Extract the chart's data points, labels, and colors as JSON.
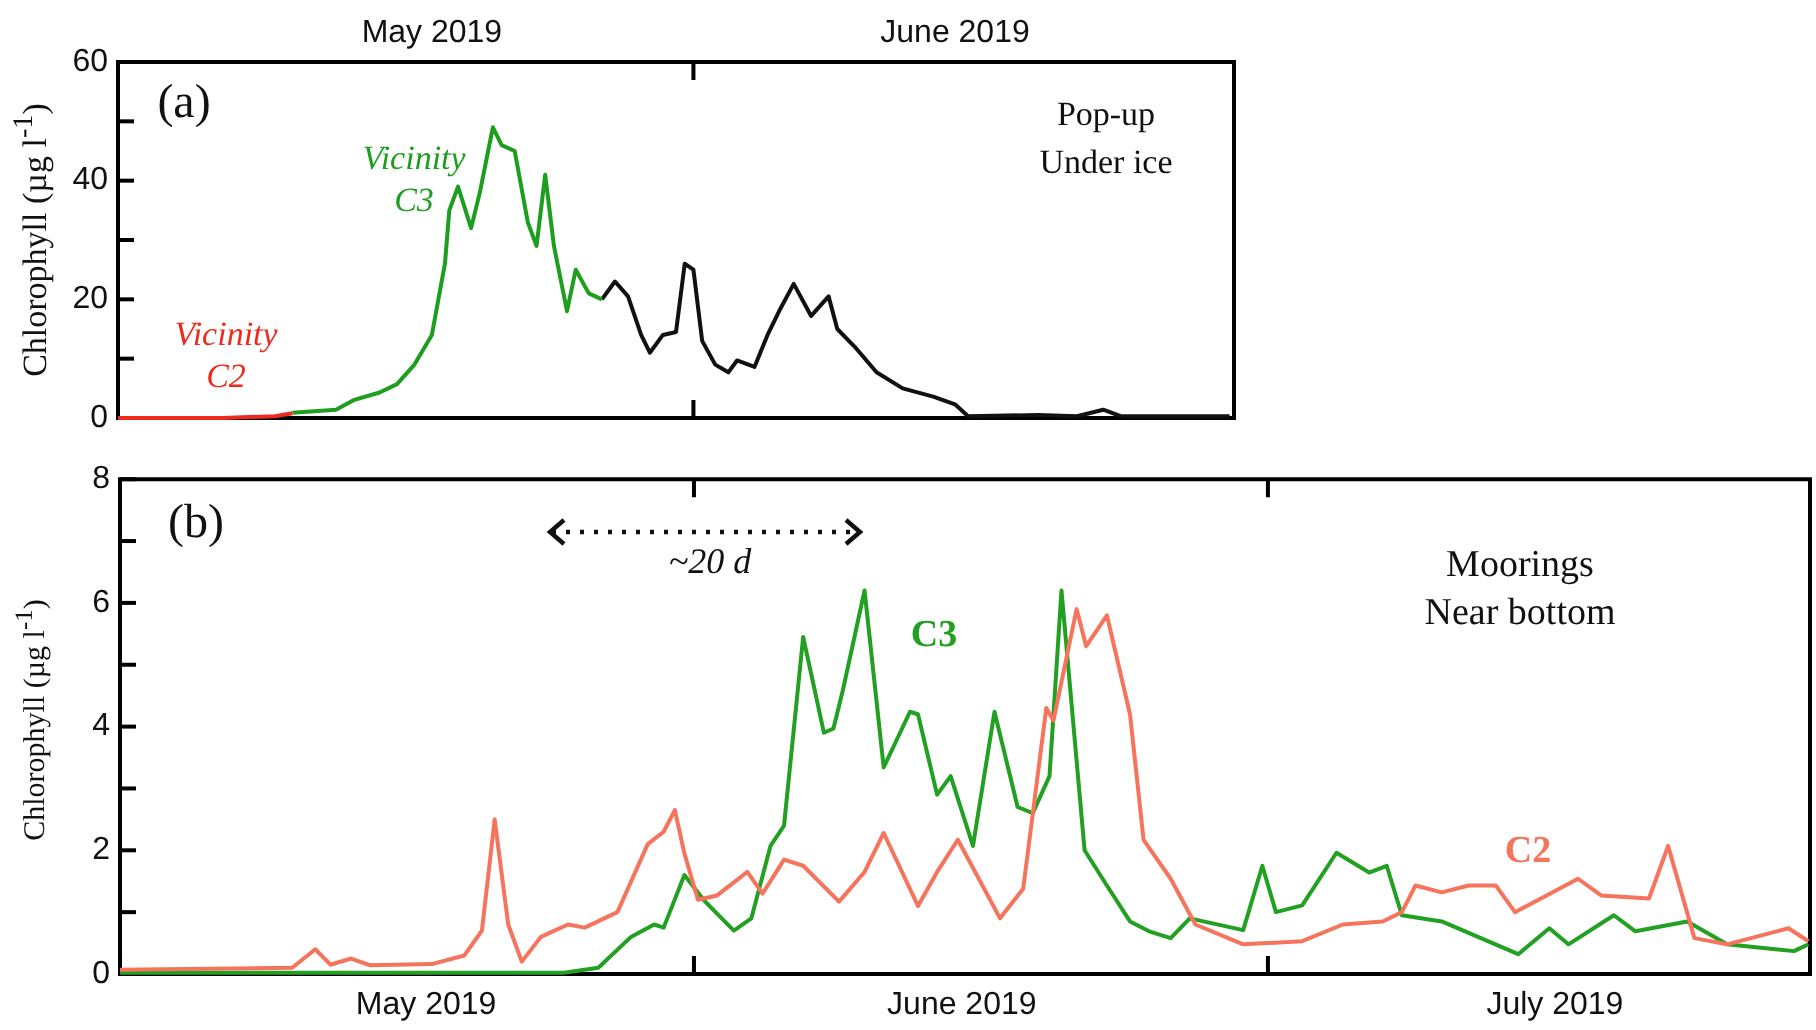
{
  "chart_data": [
    {
      "type": "line",
      "ylabel": "Chlorophyll (µg l$^{-1}$)",
      "annotations": [
        "(a)",
        "Pop-up Under ice"
      ],
      "xlim": [
        "2019-04-29",
        "2019-07-02"
      ],
      "ylim": [
        0,
        60
      ],
      "xticks": [
        {
          "value": "2019-05-17",
          "label": "May 2019"
        },
        {
          "value": "2019-06-01",
          "label": null
        },
        {
          "value": "2019-06-16",
          "label": "June 2019"
        }
      ],
      "yticks": [
        0,
        {
          "value": 10,
          "label": null
        },
        20,
        {
          "value": 30,
          "label": null
        },
        40,
        {
          "value": 50,
          "label": null
        },
        60
      ],
      "series": [
        {
          "name": "Vicinity C2",
          "color": "#ee2a1e",
          "x": [
            "2019-04-29",
            "2019-05-05",
            "2019-05-08",
            "2019-05-09"
          ],
          "values": [
            0,
            0,
            0.3,
            0.8
          ]
        },
        {
          "name": "Vicinity C3",
          "color": "#1e9e1e",
          "x": [
            "2019-05-09",
            "2019-05-11T12:00",
            "2019-05-12T12:00",
            "2019-05-14",
            "2019-05-15",
            "2019-05-16",
            "2019-05-17",
            "2019-05-17T18:00",
            "2019-05-18",
            "2019-05-18T12:00",
            "2019-05-19T06:00",
            "2019-05-19T18:00",
            "2019-05-20T12:00",
            "2019-05-21",
            "2019-05-21T18:00",
            "2019-05-22T12:00",
            "2019-05-23",
            "2019-05-23T12:00",
            "2019-05-24",
            "2019-05-24T18:00",
            "2019-05-25T06:00",
            "2019-05-26",
            "2019-05-26T18:00"
          ],
          "values": [
            0.9,
            1.4,
            3,
            4.3,
            5.7,
            9,
            14,
            26,
            35,
            39,
            32,
            38,
            49,
            46,
            45,
            33,
            29,
            41,
            29,
            18,
            25,
            21,
            20
          ]
        },
        {
          "color": "#111111",
          "x": [
            "2019-05-26T18:00",
            "2019-05-27T12:00",
            "2019-05-28T06:00",
            "2019-05-29",
            "2019-05-29T12:00",
            "2019-05-30T06:00",
            "2019-05-31",
            "2019-05-31T12:00",
            "2019-06-01",
            "2019-06-01T12:00",
            "2019-06-02T06:00",
            "2019-06-03",
            "2019-06-03T12:00",
            "2019-06-04T12:00",
            "2019-06-05T06:00",
            "2019-06-06",
            "2019-06-06T18:00",
            "2019-06-07T18:00",
            "2019-06-08T18:00",
            "2019-06-09T06:00",
            "2019-06-10T06:00",
            "2019-06-11T12:00",
            "2019-06-13",
            "2019-06-14T18:00",
            "2019-06-16",
            "2019-06-16T18:00",
            "2019-06-20T18:00",
            "2019-06-23",
            "2019-06-24T12:00",
            "2019-06-25T12:00",
            "2019-07-01T18:00"
          ],
          "values": [
            20,
            23,
            20.5,
            14,
            11,
            14,
            14.5,
            26,
            25,
            13,
            9,
            7.7,
            9.7,
            8.6,
            14,
            18.5,
            22.6,
            17.2,
            20.5,
            15,
            12,
            7.7,
            5,
            3.6,
            2.3,
            0.3,
            0.5,
            0.3,
            1.4,
            0.3,
            0.3
          ]
        }
      ]
    },
    {
      "type": "line",
      "ylabel": "Chlorophyll (µg l$^{-1}$)",
      "annotations": [
        "(b)",
        "~20 d",
        "Moorings Near bottom"
      ],
      "xlim": [
        "2019-05-02",
        "2019-07-29T08:00"
      ],
      "ylim": [
        0,
        8
      ],
      "xticks": [
        {
          "value": "2019-05-18",
          "label": "May 2019"
        },
        {
          "value": "2019-06-01",
          "label": null
        },
        {
          "value": "2019-06-15",
          "label": "June 2019"
        },
        {
          "value": "2019-07-01",
          "label": null
        },
        {
          "value": "2019-07-16",
          "label": "July 2019"
        }
      ],
      "yticks": [
        0,
        {
          "value": 1,
          "label": null
        },
        2,
        {
          "value": 3,
          "label": null
        },
        4,
        {
          "value": 5,
          "label": null
        },
        6,
        {
          "value": 7,
          "label": null
        },
        8
      ],
      "series": [
        {
          "name": "C2",
          "color": "#f6735c",
          "x": [
            "2019-05-02",
            "2019-05-11",
            "2019-05-12T05:00",
            "2019-05-13",
            "2019-05-14T02:00",
            "2019-05-15T02:00",
            "2019-05-18T07:00",
            "2019-05-20",
            "2019-05-20T22:00",
            "2019-05-21T14:00",
            "2019-05-22T07:00",
            "2019-05-23",
            "2019-05-24",
            "2019-05-25T10:00",
            "2019-05-26T07:00",
            "2019-05-28",
            "2019-05-29T14:00",
            "2019-05-30T10:00",
            "2019-05-31",
            "2019-05-31T12:00",
            "2019-06-01T05:00",
            "2019-06-02T05:00",
            "2019-06-03T19:00",
            "2019-06-04T14:00",
            "2019-06-05T17:00",
            "2019-06-06T17:00",
            "2019-06-08T14:00",
            "2019-06-09T22:00",
            "2019-06-10T22:00",
            "2019-06-12T17:00",
            "2019-06-13T17:00",
            "2019-06-14T19:00",
            "2019-06-17",
            "2019-06-18T05:00",
            "2019-06-19T10:00",
            "2019-06-19T19:00",
            "2019-06-21",
            "2019-06-21T12:00",
            "2019-06-22T14:00",
            "2019-06-23T19:00",
            "2019-06-24T12:00",
            "2019-06-25T22:00",
            "2019-06-27T05:00",
            "2019-06-29T17:00",
            "2019-07-02T19:00",
            "2019-07-04T22:00",
            "2019-07-07",
            "2019-07-08",
            "2019-07-08T17:00",
            "2019-07-10T02:00",
            "2019-07-11T12:00",
            "2019-07-12T22:00",
            "2019-07-13T22:00",
            "2019-07-17T05:00",
            "2019-07-18T10:00",
            "2019-07-20T22:00",
            "2019-07-21T22:00",
            "2019-07-23T07:00",
            "2019-07-25",
            "2019-07-28T05:00",
            "2019-07-29T06:00"
          ],
          "values": [
            0.07,
            0.1,
            0.4,
            0.15,
            0.25,
            0.14,
            0.16,
            0.3,
            0.7,
            2.5,
            0.8,
            0.2,
            0.6,
            0.8,
            0.75,
            1.0,
            2.1,
            2.3,
            2.65,
            1.95,
            1.2,
            1.27,
            1.65,
            1.3,
            1.85,
            1.75,
            1.17,
            1.65,
            2.28,
            1.1,
            1.65,
            2.17,
            0.9,
            1.38,
            4.3,
            4.1,
            5.9,
            5.3,
            5.8,
            4.2,
            2.17,
            1.54,
            0.8,
            0.48,
            0.53,
            0.8,
            0.85,
            1.0,
            1.43,
            1.32,
            1.43,
            1.43,
            1.0,
            1.54,
            1.27,
            1.22,
            2.07,
            0.58,
            0.48,
            0.74,
            0.53
          ]
        },
        {
          "name": "C3",
          "color": "#22a022",
          "x": [
            "2019-05-02",
            "2019-05-25T05:00",
            "2019-05-27",
            "2019-05-28T17:00",
            "2019-05-29T22:00",
            "2019-05-30T10:00",
            "2019-05-31T12:00",
            "2019-06-01T12:00",
            "2019-06-03T02:00",
            "2019-06-04",
            "2019-06-05",
            "2019-06-05T17:00",
            "2019-06-06T17:00",
            "2019-06-07T19:00",
            "2019-06-08T07:00",
            "2019-06-08T19:00",
            "2019-06-09T22:00",
            "2019-06-10T22:00",
            "2019-06-12T07:00",
            "2019-06-12T17:00",
            "2019-06-13T17:00",
            "2019-06-14T10:00",
            "2019-06-15T14:00",
            "2019-06-16T17:00",
            "2019-06-17T22:00",
            "2019-06-18T17:00",
            "2019-06-19T14:00",
            "2019-06-20T05:00",
            "2019-06-21T10:00",
            "2019-06-22T14:00",
            "2019-06-23T19:00",
            "2019-06-24T19:00",
            "2019-06-25T22:00",
            "2019-06-26T22:00",
            "2019-06-29T17:00",
            "2019-06-30T17:00",
            "2019-07-01T10:00",
            "2019-07-02T19:00",
            "2019-07-04T14:00",
            "2019-07-06T07:00",
            "2019-07-07T05:00",
            "2019-07-08",
            "2019-07-10T02:00",
            "2019-07-14T02:00",
            "2019-07-15T17:00",
            "2019-07-16T17:00",
            "2019-07-19T02:00",
            "2019-07-20T05:00",
            "2019-07-22T22:00",
            "2019-07-25",
            "2019-07-28T12:00",
            "2019-07-29T06:00"
          ],
          "values": [
            0.02,
            0.02,
            0.1,
            0.6,
            0.8,
            0.75,
            1.6,
            1.2,
            0.7,
            0.9,
            2.07,
            2.4,
            5.45,
            3.9,
            3.97,
            4.6,
            6.2,
            3.34,
            4.24,
            4.2,
            2.9,
            3.2,
            2.07,
            4.24,
            2.7,
            2.6,
            3.2,
            6.2,
            2.0,
            1.43,
            0.85,
            0.69,
            0.58,
            0.9,
            0.71,
            1.75,
            1.0,
            1.11,
            1.96,
            1.64,
            1.75,
            0.95,
            0.85,
            0.32,
            0.74,
            0.48,
            0.95,
            0.69,
            0.85,
            0.48,
            0.37,
            0.48
          ]
        }
      ]
    }
  ]
}
